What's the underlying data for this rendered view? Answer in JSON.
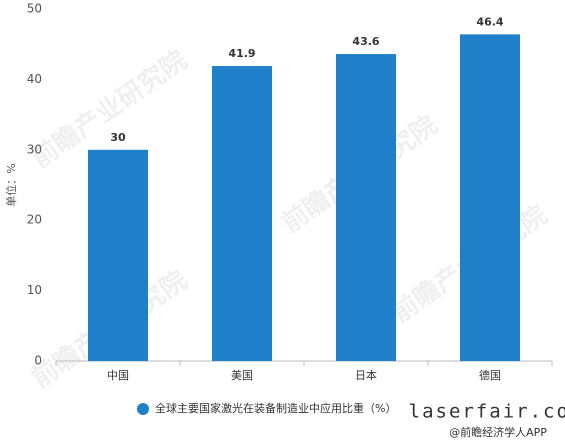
{
  "chart_data": {
    "type": "bar",
    "y_label": "单位：%",
    "categories": [
      "中国",
      "美国",
      "日本",
      "德国"
    ],
    "series": [
      {
        "name": "全球主要国家激光在装备制造业中应用比重（%）",
        "color": "#1f7fc8",
        "values": [
          30,
          41.9,
          43.6,
          46.4
        ]
      }
    ],
    "ylim": [
      0,
      50
    ],
    "yticks": [
      0,
      10,
      20,
      30,
      40,
      50
    ],
    "grid": false,
    "watermark": "前瞻产业研究院",
    "source_site": "laserfair.com",
    "source_app": "@前瞻经济学人APP"
  }
}
